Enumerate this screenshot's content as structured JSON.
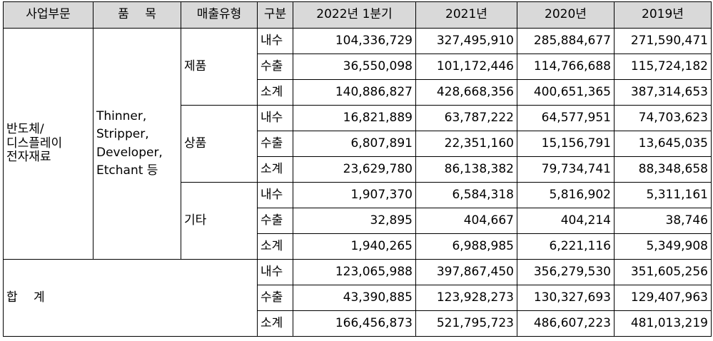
{
  "headers": [
    "사업부문",
    "품　 목",
    "매출유형",
    "구분",
    "2022년 1분기",
    "2021년",
    "2020년",
    "2019년"
  ],
  "business_segment": [
    "반도체/",
    "디스플레이",
    "전자재료"
  ],
  "products": [
    "Thinner,",
    "Stripper,",
    "Developer,",
    "Etchant 등"
  ],
  "groups": [
    {
      "type": "제품",
      "rows": [
        {
          "kind": "내수",
          "values": [
            "104,336,729",
            "327,495,910",
            "285,884,677",
            "271,590,471"
          ]
        },
        {
          "kind": "수출",
          "values": [
            "36,550,098",
            "101,172,446",
            "114,766,688",
            "115,724,182"
          ]
        },
        {
          "kind": "소계",
          "values": [
            "140,886,827",
            "428,668,356",
            "400,651,365",
            "387,314,653"
          ]
        }
      ]
    },
    {
      "type": "상품",
      "rows": [
        {
          "kind": "내수",
          "values": [
            "16,821,889",
            "63,787,222",
            "64,577,951",
            "74,703,623"
          ]
        },
        {
          "kind": "수출",
          "values": [
            "6,807,891",
            "22,351,160",
            "15,156,791",
            "13,645,035"
          ]
        },
        {
          "kind": "소계",
          "values": [
            "23,629,780",
            "86,138,382",
            "79,734,741",
            "88,348,658"
          ]
        }
      ]
    },
    {
      "type": "기타",
      "rows": [
        {
          "kind": "내수",
          "values": [
            "1,907,370",
            "6,584,318",
            "5,816,902",
            "5,311,161"
          ]
        },
        {
          "kind": "수출",
          "values": [
            "32,895",
            "404,667",
            "404,214",
            "38,746"
          ]
        },
        {
          "kind": "소계",
          "values": [
            "1,940,265",
            "6,988,985",
            "6,221,116",
            "5,349,908"
          ]
        }
      ]
    }
  ],
  "total": {
    "label": "합　 계",
    "rows": [
      {
        "kind": "내수",
        "values": [
          "123,065,988",
          "397,867,450",
          "356,279,530",
          "351,605,256"
        ]
      },
      {
        "kind": "수출",
        "values": [
          "43,390,885",
          "123,928,273",
          "130,327,693",
          "129,407,963"
        ]
      },
      {
        "kind": "소계",
        "values": [
          "166,456,873",
          "521,795,723",
          "486,607,223",
          "481,013,219"
        ]
      }
    ]
  }
}
